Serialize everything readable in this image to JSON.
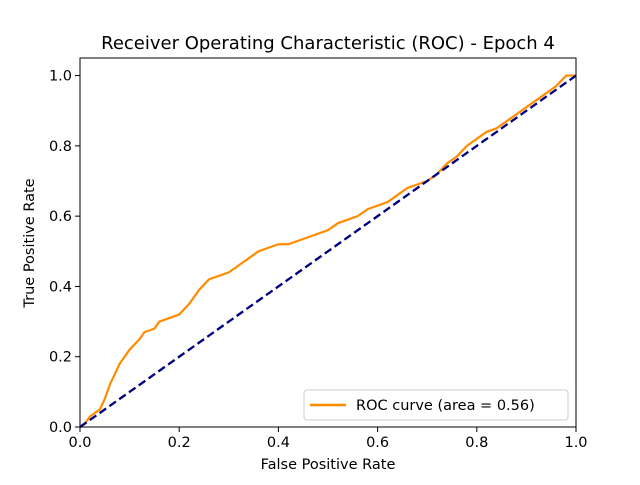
{
  "chart_data": {
    "type": "line",
    "title": "Receiver Operating Characteristic (ROC) - Epoch 4",
    "xlabel": "False Positive Rate",
    "ylabel": "True Positive Rate",
    "xlim": [
      0.0,
      1.0
    ],
    "ylim": [
      0.0,
      1.05
    ],
    "x_ticks": [
      0.0,
      0.2,
      0.4,
      0.6,
      0.8,
      1.0
    ],
    "y_ticks": [
      0.0,
      0.2,
      0.4,
      0.6,
      0.8,
      1.0
    ],
    "x_tick_labels": [
      "0.0",
      "0.2",
      "0.4",
      "0.6",
      "0.8",
      "1.0"
    ],
    "y_tick_labels": [
      "0.0",
      "0.2",
      "0.4",
      "0.6",
      "0.8",
      "1.0"
    ],
    "grid": false,
    "legend_position": "lower-right",
    "series": [
      {
        "name": "ROC curve (area = 0.56)",
        "color": "#ff8c00",
        "style": "solid",
        "x": [
          0.0,
          0.01,
          0.02,
          0.03,
          0.04,
          0.05,
          0.06,
          0.07,
          0.08,
          0.09,
          0.1,
          0.12,
          0.13,
          0.15,
          0.16,
          0.18,
          0.2,
          0.22,
          0.24,
          0.26,
          0.28,
          0.3,
          0.32,
          0.34,
          0.36,
          0.38,
          0.4,
          0.42,
          0.44,
          0.46,
          0.48,
          0.5,
          0.52,
          0.54,
          0.56,
          0.58,
          0.6,
          0.62,
          0.64,
          0.66,
          0.68,
          0.7,
          0.72,
          0.74,
          0.76,
          0.78,
          0.8,
          0.82,
          0.84,
          0.86,
          0.88,
          0.9,
          0.92,
          0.94,
          0.96,
          0.98,
          1.0
        ],
        "y": [
          0.0,
          0.01,
          0.03,
          0.04,
          0.05,
          0.08,
          0.12,
          0.15,
          0.18,
          0.2,
          0.22,
          0.25,
          0.27,
          0.28,
          0.3,
          0.31,
          0.32,
          0.35,
          0.39,
          0.42,
          0.43,
          0.44,
          0.46,
          0.48,
          0.5,
          0.51,
          0.52,
          0.52,
          0.53,
          0.54,
          0.55,
          0.56,
          0.58,
          0.59,
          0.6,
          0.62,
          0.63,
          0.64,
          0.66,
          0.68,
          0.69,
          0.7,
          0.72,
          0.75,
          0.77,
          0.8,
          0.82,
          0.84,
          0.85,
          0.87,
          0.89,
          0.91,
          0.93,
          0.95,
          0.97,
          1.0,
          1.0
        ]
      },
      {
        "name": "",
        "color": "#000080",
        "style": "dashed",
        "x": [
          0.0,
          1.0
        ],
        "y": [
          0.0,
          1.0
        ]
      }
    ]
  }
}
